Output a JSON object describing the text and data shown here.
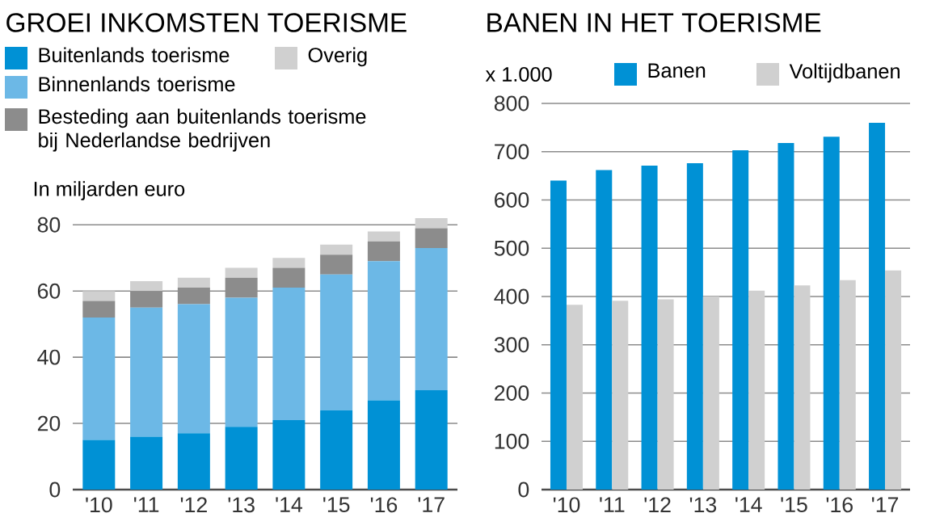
{
  "chart_data": [
    {
      "type": "bar",
      "title": "GROEI INKOMSTEN TOERISME",
      "ylabel": "In miljarden euro",
      "stacked": true,
      "categories": [
        "'10",
        "'11",
        "'12",
        "'13",
        "'14",
        "'15",
        "'16",
        "'17"
      ],
      "series": [
        {
          "name": "Buitenlands toerisme",
          "color": "#0091d5",
          "values": [
            15,
            16,
            17,
            19,
            21,
            24,
            27,
            30
          ]
        },
        {
          "name": "Binnenlands toerisme",
          "color": "#6cb8e6",
          "values": [
            37,
            39,
            39,
            39,
            40,
            41,
            42,
            43
          ]
        },
        {
          "name": "Besteding aan buitenlands toerisme bij Nederlandse bedrijven",
          "color": "#8c8c8c",
          "values": [
            5,
            5,
            5,
            6,
            6,
            6,
            6,
            6
          ]
        },
        {
          "name": "Overig",
          "color": "#d0d0d0",
          "values": [
            3,
            3,
            3,
            3,
            3,
            3,
            3,
            3
          ]
        }
      ],
      "ylim": [
        0,
        83
      ],
      "yticks": [
        0,
        20,
        40,
        60,
        80
      ],
      "grid": "y",
      "legend": "top"
    },
    {
      "type": "bar",
      "title": "BANEN IN HET TOERISME",
      "ylabel": "x 1.000",
      "categories": [
        "'10",
        "'11",
        "'12",
        "'13",
        "'14",
        "'15",
        "'16",
        "'17"
      ],
      "series": [
        {
          "name": "Banen",
          "color": "#0091d5",
          "values": [
            640,
            662,
            671,
            676,
            703,
            718,
            731,
            760
          ]
        },
        {
          "name": "Voltijdbanen",
          "color": "#d0d0d0",
          "values": [
            383,
            391,
            394,
            400,
            412,
            423,
            434,
            454
          ]
        }
      ],
      "ylim": [
        0,
        800
      ],
      "yticks": [
        0,
        100,
        200,
        300,
        400,
        500,
        600,
        700,
        800
      ],
      "grid": "y",
      "legend": "top"
    }
  ]
}
